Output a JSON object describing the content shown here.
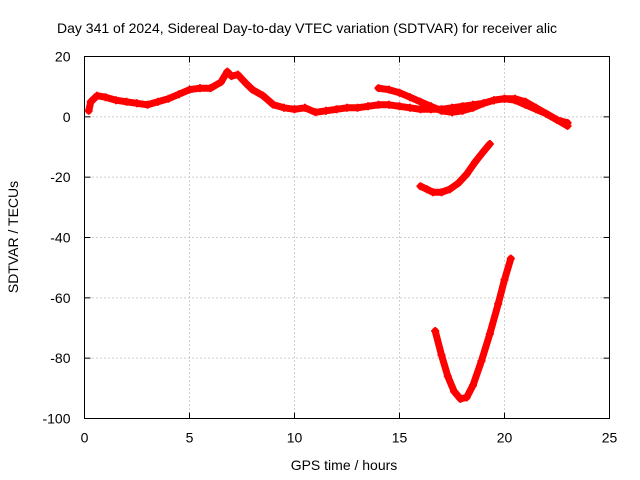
{
  "chart_data": {
    "type": "scatter",
    "title": "Day 341 of 2024, Sidereal Day-to-day VTEC variation (SDTVAR) for receiver alic",
    "xlabel": "GPS time / hours",
    "ylabel": "SDTVAR / TECUs",
    "xlim": [
      0,
      25
    ],
    "ylim": [
      -100,
      20
    ],
    "xticks": [
      0,
      5,
      10,
      15,
      20,
      25
    ],
    "yticks": [
      -100,
      -80,
      -60,
      -40,
      -20,
      0,
      20
    ],
    "grid": true,
    "color": "#ff0000",
    "series": [
      {
        "values": [
          [
            0.2,
            2
          ],
          [
            0.3,
            5
          ],
          [
            0.6,
            7
          ],
          [
            1.0,
            6.5
          ],
          [
            1.5,
            5.5
          ],
          [
            2.0,
            5
          ],
          [
            2.5,
            4.5
          ],
          [
            3.0,
            4
          ],
          [
            3.5,
            5
          ],
          [
            4.0,
            6
          ],
          [
            4.5,
            7.5
          ],
          [
            5.0,
            9
          ],
          [
            5.5,
            9.5
          ],
          [
            6.0,
            9.5
          ],
          [
            6.5,
            11.5
          ],
          [
            6.8,
            15
          ],
          [
            7.0,
            13.5
          ],
          [
            7.3,
            14
          ],
          [
            7.7,
            11
          ],
          [
            8.0,
            9
          ],
          [
            8.5,
            7
          ],
          [
            9.0,
            4
          ],
          [
            9.5,
            3
          ],
          [
            10.0,
            2.5
          ],
          [
            10.5,
            3
          ],
          [
            11.0,
            1.5
          ],
          [
            11.5,
            2
          ],
          [
            12.0,
            2.5
          ],
          [
            12.5,
            3
          ],
          [
            13.0,
            3
          ],
          [
            13.5,
            3.5
          ],
          [
            14.0,
            4
          ],
          [
            14.5,
            4
          ],
          [
            15.0,
            3.5
          ],
          [
            15.5,
            3
          ],
          [
            16.0,
            2.5
          ],
          [
            16.5,
            2.5
          ],
          [
            17.0,
            2.5
          ],
          [
            17.5,
            3
          ],
          [
            18.0,
            3.5
          ],
          [
            18.5,
            4
          ],
          [
            19.0,
            4.5
          ],
          [
            19.5,
            5.5
          ],
          [
            20.0,
            6
          ],
          [
            20.5,
            5.5
          ],
          [
            21.0,
            4
          ],
          [
            21.5,
            2.5
          ],
          [
            22.0,
            1
          ],
          [
            22.5,
            -1
          ],
          [
            23.0,
            -3
          ]
        ]
      },
      {
        "values": [
          [
            14.0,
            9.5
          ],
          [
            14.5,
            9
          ],
          [
            15.0,
            8
          ],
          [
            15.5,
            6.5
          ],
          [
            16.0,
            5
          ],
          [
            16.5,
            3.5
          ],
          [
            17.0,
            2
          ],
          [
            17.5,
            1.5
          ],
          [
            18.0,
            2
          ],
          [
            18.5,
            3
          ],
          [
            19.0,
            4.5
          ],
          [
            19.5,
            5.5
          ],
          [
            20.0,
            6
          ],
          [
            20.5,
            6
          ],
          [
            21.0,
            5
          ],
          [
            21.5,
            3
          ],
          [
            22.0,
            1
          ],
          [
            22.5,
            -1
          ],
          [
            23.0,
            -2
          ]
        ]
      },
      {
        "values": [
          [
            16.0,
            -23
          ],
          [
            16.3,
            -24
          ],
          [
            16.6,
            -25
          ],
          [
            17.0,
            -25
          ],
          [
            17.4,
            -24
          ],
          [
            17.8,
            -22
          ],
          [
            18.2,
            -19
          ],
          [
            18.6,
            -15
          ],
          [
            19.0,
            -11.5
          ],
          [
            19.3,
            -9
          ]
        ]
      },
      {
        "values": [
          [
            16.7,
            -71
          ],
          [
            17.0,
            -79
          ],
          [
            17.3,
            -86
          ],
          [
            17.6,
            -91
          ],
          [
            17.9,
            -93.5
          ],
          [
            18.2,
            -93
          ],
          [
            18.5,
            -89
          ],
          [
            18.9,
            -81
          ],
          [
            19.3,
            -72
          ],
          [
            19.7,
            -62
          ],
          [
            20.0,
            -54
          ],
          [
            20.3,
            -47
          ]
        ]
      }
    ]
  }
}
